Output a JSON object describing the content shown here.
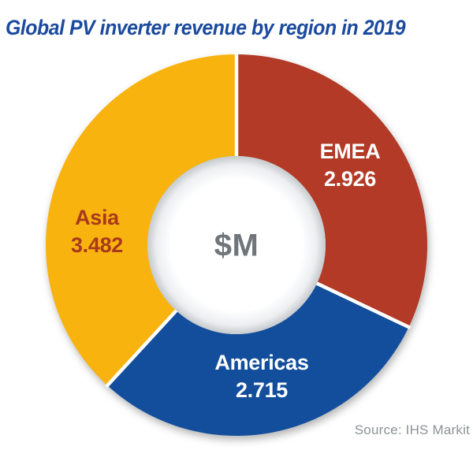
{
  "title": "Global PV inverter revenue by region in 2019",
  "source": "Source: IHS Markit",
  "colors": {
    "background": "#ffffff",
    "title_text": "#1b4a9e",
    "center_label_text": "#70757a",
    "source_text": "#8d9296",
    "separator": "#ffffff",
    "hole_shadow_edge": "#c6cacd"
  },
  "chart_data": {
    "type": "pie",
    "subtype": "donut",
    "title": "Global PV inverter revenue by region in 2019",
    "unit_label": "$M",
    "categories": [
      "EMEA",
      "Americas",
      "Asia"
    ],
    "values": [
      2926,
      2715,
      3482
    ],
    "value_labels": [
      "2.926",
      "2.715",
      "3.482"
    ],
    "colors": [
      "#b23a26",
      "#134e9c",
      "#f8b30e"
    ],
    "label_colors": [
      "#ffffff",
      "#ffffff",
      "#a8391d"
    ],
    "total": 9123,
    "start_angle_deg": 0,
    "direction": "clockwise",
    "donut_hole_ratio": 0.47,
    "legend_position": "none",
    "labels_on_slices": true,
    "source": "Source: IHS Markit"
  }
}
